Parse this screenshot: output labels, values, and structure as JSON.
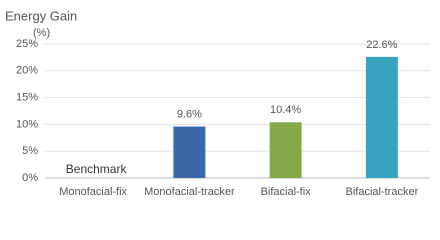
{
  "chart_data": {
    "type": "bar",
    "title": "Energy Gain",
    "y_label": "(%)",
    "categories": [
      "Monofacial-fix",
      "Monofacial-tracker",
      "Bifacial-fix",
      "Bifacial-tracker"
    ],
    "values": [
      0,
      9.6,
      10.4,
      22.6
    ],
    "value_labels": [
      null,
      "9.6%",
      "10.4%",
      "22.6%"
    ],
    "annotation": "Benchmark",
    "colors": [
      "#3a67a8",
      "#3a67a8",
      "#86a94a",
      "#3aa3bf"
    ],
    "ylim": [
      0,
      25
    ],
    "yticks": [
      {
        "value": 0,
        "label": "0%"
      },
      {
        "value": 5,
        "label": "5%"
      },
      {
        "value": 10,
        "label": "10%"
      },
      {
        "value": 15,
        "label": "15%"
      },
      {
        "value": 20,
        "label": "20%"
      },
      {
        "value": 25,
        "label": "25%"
      }
    ],
    "grid": true
  }
}
